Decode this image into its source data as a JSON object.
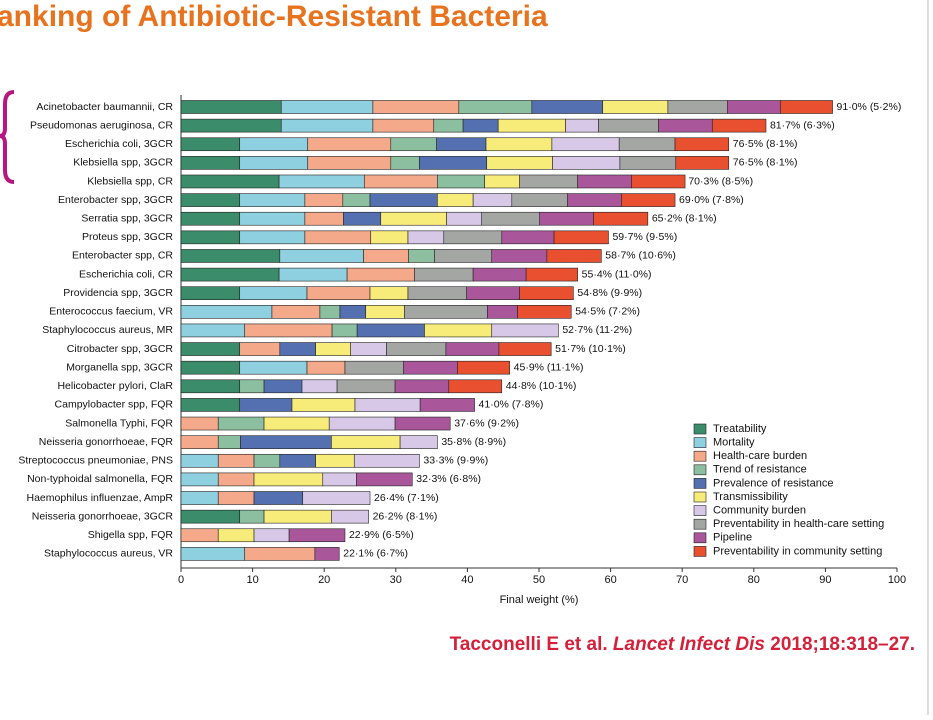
{
  "chart_data": {
    "type": "stacked-barh",
    "title": "anking of Antibiotic-Resistant Bacteria",
    "xlabel": "Final weight (%)",
    "citation": {
      "authors": "Tacconelli E et al.",
      "journal": "Lancet Infect Dis",
      "ref": "2018;18:318–27."
    },
    "categories": [
      "Acinetobacter baumannii, CR",
      "Pseudomonas aeruginosa, CR",
      "Escherichia coli, 3GCR",
      "Klebsiella spp, 3GCR",
      "Klebsiella spp, CR",
      "Enterobacter spp, 3GCR",
      "Serratia spp, 3GCR",
      "Proteus spp, 3GCR",
      "Enterobacter spp, CR",
      "Escherichia coli, CR",
      "Providencia spp, 3GCR",
      "Enterococcus faecium, VR",
      "Staphylococcus aureus, MR",
      "Citrobacter spp, 3GCR",
      "Morganella spp, 3GCR",
      "Helicobacter pylori, ClaR",
      "Campylobacter spp, FQR",
      "Salmonella Typhi, FQR",
      "Neisseria gonorrhoeae, FQR",
      "Streptococcus pneumoniae, PNS",
      "Non-typhoidal salmonella, FQR",
      "Haemophilus influenzae, AmpR",
      "Neisseria gonorrhoeae, 3GCR",
      "Shigella spp, FQR",
      "Staphylococcus aureus, VR"
    ],
    "totals": [
      91.0,
      81.7,
      76.5,
      76.5,
      70.3,
      69.0,
      65.2,
      59.7,
      58.7,
      55.4,
      54.8,
      54.5,
      52.7,
      51.7,
      45.9,
      44.8,
      41.0,
      37.6,
      35.8,
      33.3,
      32.3,
      26.4,
      26.2,
      22.9,
      22.1
    ],
    "total_labels": [
      "91·0% (5·2%)",
      "81·7% (6·3%)",
      "76·5% (8·1%)",
      "76·5% (8·1%)",
      "70·3% (8·5%)",
      "69·0% (7·8%)",
      "65·2% (8·1%)",
      "59·7% (9·5%)",
      "58·7% (10·6%)",
      "55·4% (11·0%)",
      "54·8% (9·9%)",
      "54·5% (7·2%)",
      "52·7% (11·2%)",
      "51·7% (10·1%)",
      "45·9% (11·1%)",
      "44·8% (10·1%)",
      "41·0% (7·8%)",
      "37·6% (9·2%)",
      "35·8% (8·9%)",
      "33·3% (9·9%)",
      "32·3% (6·8%)",
      "26·4% (7·1%)",
      "26·2% (8·1%)",
      "22·9% (6·5%)",
      "22·1% (6·7%)"
    ],
    "series": [
      {
        "name": "Treatability",
        "color": "#3a8c6a",
        "values": [
          14.0,
          14.0,
          8.2,
          8.2,
          13.7,
          8.2,
          8.2,
          8.2,
          13.8,
          13.7,
          8.2,
          0,
          0,
          8.2,
          8.2,
          8.2,
          8.2,
          0,
          0,
          0,
          0,
          0,
          8.2,
          0,
          0
        ]
      },
      {
        "name": "Mortality",
        "color": "#8ecfe0",
        "values": [
          12.8,
          12.8,
          9.5,
          9.5,
          11.9,
          9.1,
          9.1,
          9.1,
          11.7,
          9.5,
          9.4,
          12.7,
          8.9,
          0,
          9.4,
          0,
          0,
          0,
          0,
          5.2,
          5.2,
          5.2,
          0,
          0,
          8.9
        ]
      },
      {
        "name": "Health-care burden",
        "color": "#f4a98a",
        "values": [
          12.0,
          8.5,
          11.6,
          11.6,
          10.2,
          5.3,
          5.4,
          9.2,
          6.3,
          9.4,
          8.8,
          6.7,
          12.2,
          5.6,
          5.3,
          0,
          0,
          5.2,
          5.2,
          5.0,
          5.0,
          5.0,
          0,
          5.2,
          9.8
        ]
      },
      {
        "name": "Trend of resistance",
        "color": "#8cbf9f",
        "values": [
          10.2,
          4.1,
          6.4,
          4.0,
          6.6,
          3.8,
          0,
          0,
          3.6,
          0,
          0,
          2.8,
          3.5,
          0,
          0,
          3.4,
          0,
          6.4,
          3.1,
          3.6,
          0,
          0,
          3.4,
          0,
          0
        ]
      },
      {
        "name": "Prevalence of resistance",
        "color": "#5570b0",
        "values": [
          9.9,
          4.9,
          6.9,
          9.4,
          0,
          9.4,
          5.2,
          0,
          0,
          0,
          0,
          3.6,
          9.4,
          5.0,
          0,
          5.3,
          7.3,
          0,
          12.7,
          5.0,
          0,
          6.8,
          0,
          0,
          0
        ]
      },
      {
        "name": "Transmissibility",
        "color": "#f7ec7a",
        "values": [
          9.1,
          9.4,
          9.2,
          9.2,
          4.9,
          5.0,
          9.2,
          5.2,
          0,
          0,
          5.3,
          5.4,
          9.4,
          4.9,
          0,
          0,
          8.8,
          9.1,
          9.6,
          5.4,
          9.6,
          0,
          9.4,
          5.0,
          0
        ]
      },
      {
        "name": "Community burden",
        "color": "#d6c8e6",
        "values": [
          0,
          4.6,
          9.4,
          9.4,
          0,
          5.4,
          4.9,
          5.0,
          0,
          0,
          0,
          0,
          9.3,
          5.0,
          0,
          4.9,
          9.1,
          9.2,
          5.2,
          9.1,
          4.7,
          9.4,
          5.2,
          4.9,
          0
        ]
      },
      {
        "name": "Preventability in health-care setting",
        "color": "#a3a6a3",
        "values": [
          8.3,
          8.4,
          7.8,
          7.8,
          8.1,
          7.8,
          8.1,
          8.1,
          8.0,
          8.2,
          8.2,
          11.6,
          0,
          8.3,
          8.2,
          8.1,
          0,
          0,
          0,
          0,
          0,
          0,
          0,
          0,
          0
        ]
      },
      {
        "name": "Pipeline",
        "color": "#a9569b",
        "values": [
          7.4,
          7.5,
          0,
          0,
          7.5,
          7.5,
          7.5,
          7.3,
          7.7,
          7.4,
          7.4,
          4.2,
          0,
          7.4,
          7.5,
          7.5,
          7.6,
          7.7,
          0,
          0,
          7.8,
          0,
          0,
          7.8,
          3.4
        ]
      },
      {
        "name": "Preventability in community setting",
        "color": "#e8502f",
        "values": [
          7.3,
          7.5,
          7.5,
          7.4,
          7.5,
          7.5,
          7.6,
          7.6,
          7.6,
          7.2,
          7.5,
          7.5,
          0,
          7.3,
          7.3,
          7.4,
          0,
          0,
          0,
          0,
          0,
          0,
          0,
          0,
          0
        ]
      }
    ],
    "xlim": [
      0,
      100
    ],
    "xticks": [
      0,
      10,
      20,
      30,
      40,
      50,
      60,
      70,
      80,
      90,
      100
    ]
  }
}
